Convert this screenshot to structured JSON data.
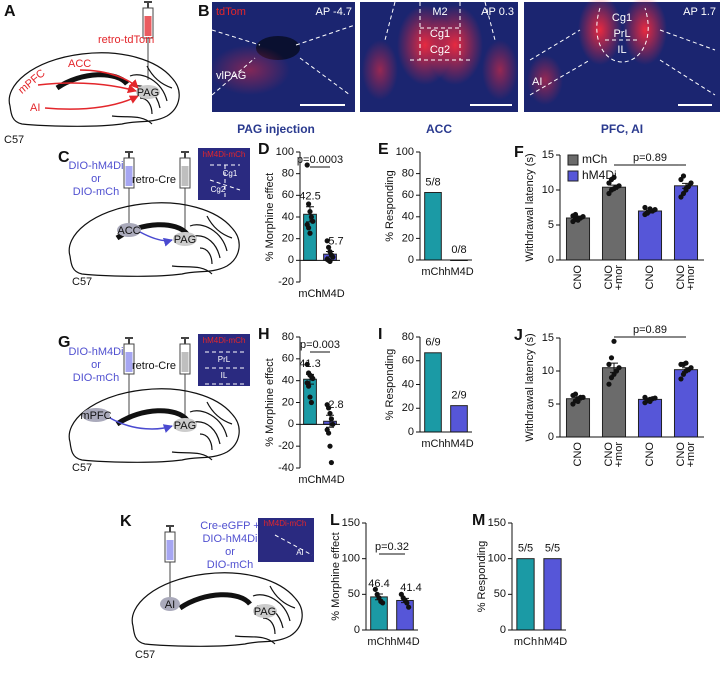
{
  "panel_A": {
    "letter": "A",
    "syringe_label": "retro-tdTom",
    "regions": [
      "ACC",
      "mPFC",
      "AI",
      "PAG"
    ],
    "strain": "C57"
  },
  "panel_B": {
    "letter": "B",
    "images": [
      {
        "channel": "tdTom",
        "ap": "AP -4.7",
        "regions": [
          "vlPAG"
        ],
        "caption": "PAG injection"
      },
      {
        "ap": "AP 0.3",
        "regions": [
          "M2",
          "Cg1",
          "Cg2"
        ],
        "caption": "ACC"
      },
      {
        "ap": "AP 1.7",
        "regions": [
          "Cg1",
          "PrL",
          "IL",
          "AI"
        ],
        "caption": "PFC, AI"
      }
    ]
  },
  "panel_C": {
    "letter": "C",
    "virus": [
      "DIO-hM4Di",
      "or",
      "DIO-mCh"
    ],
    "retro": "retro-Cre",
    "regions": [
      "ACC",
      "PAG"
    ],
    "strain": "C57",
    "inset": [
      "hM4Di-mCh",
      "Cg1",
      "Cg2"
    ]
  },
  "panel_G": {
    "letter": "G",
    "virus": [
      "DIO-hM4Di",
      "or",
      "DIO-mCh"
    ],
    "retro": "retro-Cre",
    "regions": [
      "mPFC",
      "PAG"
    ],
    "strain": "C57",
    "inset": [
      "hM4Di-mCh",
      "PrL",
      "IL"
    ]
  },
  "panel_K": {
    "letter": "K",
    "virus": [
      "Cre-eGFP +",
      "DIO-hM4Di",
      "or",
      "DIO-mCh"
    ],
    "regions": [
      "AI",
      "PAG"
    ],
    "strain": "C57",
    "inset": [
      "hM4Di-mCh",
      "AI"
    ]
  },
  "chart_data": [
    {
      "letter": "D",
      "type": "bar",
      "ylabel": "% Morphine effect",
      "categories": [
        [
          "mCh"
        ],
        [
          "hM4D"
        ]
      ],
      "values": [
        42.5,
        5.7
      ],
      "errors": [
        7,
        2.5
      ],
      "colors": [
        "#1b9aa5",
        "#5656d8"
      ],
      "data_labels": true,
      "points": [
        [
          88,
          52,
          45,
          40,
          36,
          33,
          30,
          25
        ],
        [
          18,
          12,
          8,
          5,
          3,
          1,
          0,
          -1
        ]
      ],
      "annotation": "p=0.0003",
      "ylim": [
        -20,
        100
      ],
      "yticks": [
        -20,
        0,
        20,
        40,
        60,
        80,
        100
      ]
    },
    {
      "letter": "E",
      "type": "bar",
      "ylabel": "% Responding",
      "categories": [
        [
          "mCh"
        ],
        [
          "hM4D"
        ]
      ],
      "values": [
        62.5,
        0
      ],
      "value_labels": [
        "5/8",
        "0/8"
      ],
      "colors": [
        "#1b9aa5",
        "#5656d8"
      ],
      "data_labels": true,
      "ylim": [
        0,
        100
      ],
      "yticks": [
        0,
        20,
        40,
        60,
        80,
        100
      ]
    },
    {
      "letter": "F",
      "type": "bar",
      "ylabel": "Withdrawal latency (s)",
      "categories": [
        [
          "CNO"
        ],
        [
          "CNO",
          "+mor"
        ],
        [
          "CNO"
        ],
        [
          "CNO",
          "+mor"
        ]
      ],
      "values": [
        6,
        10.4,
        7,
        10.6
      ],
      "errors": [
        0.2,
        0.3,
        0.15,
        0.35
      ],
      "colors": [
        "#6b6b6b",
        "#6b6b6b",
        "#5656d8",
        "#5656d8"
      ],
      "points": [
        [
          5.5,
          5.8,
          6,
          6,
          6.2,
          6.3,
          6.5,
          5.7
        ],
        [
          9.5,
          10,
          10.2,
          10.4,
          10.6,
          11,
          11.5,
          11.8
        ],
        [
          6.5,
          6.7,
          7,
          7,
          7.2,
          7.5,
          6.8,
          7.3
        ],
        [
          9,
          9.5,
          10,
          10.5,
          11,
          11.5,
          12,
          10.2
        ]
      ],
      "legend": [
        {
          "name": "mCh",
          "color": "#6b6b6b"
        },
        {
          "name": "hM4Di",
          "color": "#5656d8"
        }
      ],
      "annotation": "p=0.89",
      "ylim": [
        0,
        15
      ],
      "yticks": [
        0,
        5,
        10,
        15
      ]
    },
    {
      "letter": "H",
      "type": "bar",
      "ylabel": "% Morphine effect",
      "categories": [
        [
          "mCh"
        ],
        [
          "hM4D"
        ]
      ],
      "values": [
        41.3,
        2.8
      ],
      "errors": [
        4.5,
        5.5
      ],
      "colors": [
        "#1b9aa5",
        "#5656d8"
      ],
      "data_labels": true,
      "points": [
        [
          55,
          47,
          45,
          44,
          42,
          38,
          35,
          25,
          20
        ],
        [
          18,
          15,
          10,
          5,
          0,
          -5,
          -8,
          -20,
          -35
        ]
      ],
      "annotation": "p=0.003",
      "ylim": [
        -40,
        80
      ],
      "yticks": [
        -40,
        -20,
        0,
        20,
        40,
        60,
        80
      ]
    },
    {
      "letter": "I",
      "type": "bar",
      "ylabel": "% Responding",
      "categories": [
        [
          "mCh"
        ],
        [
          "hM4D"
        ]
      ],
      "values": [
        66.7,
        22.2
      ],
      "value_labels": [
        "6/9",
        "2/9"
      ],
      "colors": [
        "#1b9aa5",
        "#5656d8"
      ],
      "data_labels": true,
      "ylim": [
        0,
        80
      ],
      "yticks": [
        0,
        20,
        40,
        60,
        80
      ]
    },
    {
      "letter": "J",
      "type": "bar",
      "ylabel": "Withdrawal latency (s)",
      "categories": [
        [
          "CNO"
        ],
        [
          "CNO",
          "+mor"
        ],
        [
          "CNO"
        ],
        [
          "CNO",
          "+mor"
        ]
      ],
      "values": [
        5.8,
        10.5,
        5.7,
        10.2
      ],
      "errors": [
        0.2,
        0.7,
        0.1,
        0.3
      ],
      "colors": [
        "#6b6b6b",
        "#6b6b6b",
        "#5656d8",
        "#5656d8"
      ],
      "points": [
        [
          5,
          5.5,
          5.8,
          6,
          6,
          6.3,
          6.5,
          5.4
        ],
        [
          8,
          9,
          9.5,
          10,
          10.5,
          11,
          12,
          14.5
        ],
        [
          5.2,
          5.5,
          5.7,
          5.8,
          5.9,
          6,
          5.6,
          5.4
        ],
        [
          8.8,
          9.5,
          10,
          10.2,
          10.5,
          11,
          11,
          11.2
        ]
      ],
      "annotation": "p=0.89",
      "ylim": [
        0,
        15
      ],
      "yticks": [
        0,
        5,
        10,
        15
      ]
    },
    {
      "letter": "L",
      "type": "bar",
      "ylabel": "% Morphine effect",
      "categories": [
        [
          "mCh"
        ],
        [
          "hM4D"
        ]
      ],
      "values": [
        46.4,
        41.4
      ],
      "errors": [
        4,
        3
      ],
      "colors": [
        "#1b9aa5",
        "#5656d8"
      ],
      "data_labels": true,
      "points": [
        [
          57,
          50,
          45,
          40,
          38
        ],
        [
          50,
          45,
          42,
          38,
          32
        ]
      ],
      "annotation": "p=0.32",
      "ylim": [
        0,
        150
      ],
      "yticks": [
        0,
        50,
        100,
        150
      ]
    },
    {
      "letter": "M",
      "type": "bar",
      "ylabel": "% Responding",
      "categories": [
        [
          "mCh"
        ],
        [
          "hM4D"
        ]
      ],
      "values": [
        100,
        100
      ],
      "value_labels": [
        "5/5",
        "5/5"
      ],
      "colors": [
        "#1b9aa5",
        "#5656d8"
      ],
      "data_labels": true,
      "ylim": [
        0,
        150
      ],
      "yticks": [
        0,
        50,
        100,
        150
      ]
    }
  ]
}
